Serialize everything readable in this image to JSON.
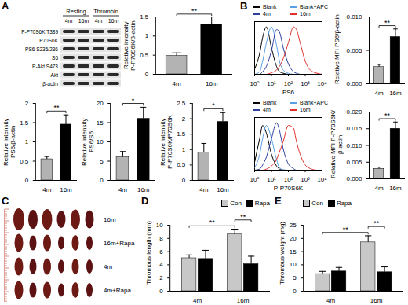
{
  "panel_labels": [
    "A",
    "B",
    "C",
    "D",
    "E"
  ],
  "blot": {
    "groups": [
      {
        "label": "Resting",
        "lanes": [
          "4m",
          "16m"
        ]
      },
      {
        "label": "Thrombin",
        "lanes": [
          "4m",
          "16m"
        ]
      }
    ],
    "rows": [
      "P-P70S6K T389",
      "P70S6K",
      "PS6 S235/236",
      "S6",
      "P-Akt S473",
      "Akt",
      "β-actin"
    ]
  },
  "photo": {
    "rows": [
      "16m",
      "16m+Rapa",
      "4m",
      "4m+Rapa"
    ]
  },
  "chart_data": [
    {
      "type": "bar",
      "ylabel": [
        "Relative intensity",
        "P-P70S6K/β-actin"
      ],
      "categories": [
        "4m",
        "16m"
      ],
      "values": [
        0.48,
        1.3
      ],
      "errors": [
        0.08,
        0.2
      ],
      "colors": [
        "#b3b3b3",
        "#000000"
      ],
      "ylim": [
        0,
        1.5
      ],
      "yticks": [
        0,
        0.5,
        1,
        1.5
      ],
      "significance": [
        {
          "label": "**",
          "from": "4m",
          "to": "16m"
        }
      ]
    },
    {
      "type": "bar",
      "ylabel": [
        "Relative intensity",
        "PS6/β-actin"
      ],
      "categories": [
        "4m",
        "16m"
      ],
      "values": [
        0.55,
        1.45
      ],
      "errors": [
        0.07,
        0.25
      ],
      "colors": [
        "#b3b3b3",
        "#000000"
      ],
      "ylim": [
        0,
        2
      ],
      "yticks": [
        0,
        0.5,
        1,
        1.5,
        2
      ],
      "significance": [
        {
          "label": "**",
          "from": "4m",
          "to": "16m"
        }
      ]
    },
    {
      "type": "bar",
      "ylabel": [
        "Relative intensity",
        "PS6/S6"
      ],
      "categories": [
        "4m",
        "16m"
      ],
      "values": [
        6,
        16
      ],
      "errors": [
        1.5,
        3
      ],
      "colors": [
        "#b3b3b3",
        "#000000"
      ],
      "ylim": [
        0,
        20
      ],
      "yticks": [
        0,
        5,
        10,
        15,
        20
      ],
      "significance": [
        {
          "label": "*",
          "from": "4m",
          "to": "16m"
        }
      ]
    },
    {
      "type": "bar",
      "ylabel": [
        "Relative intensity",
        "P-P70S6K/P70S6K"
      ],
      "categories": [
        "4m",
        "16m"
      ],
      "values": [
        0.9,
        1.9
      ],
      "errors": [
        0.3,
        0.3
      ],
      "colors": [
        "#b3b3b3",
        "#000000"
      ],
      "ylim": [
        0,
        2.5
      ],
      "yticks": [
        0,
        0.5,
        1,
        1.5,
        2,
        2.5
      ],
      "significance": [
        {
          "label": "*",
          "from": "4m",
          "to": "16m"
        }
      ]
    },
    {
      "type": "line",
      "xlabel": "PS6",
      "log": "x",
      "legend": "top",
      "tick_labels": "x",
      "x": [
        1,
        2,
        3,
        5,
        10,
        20,
        30,
        50,
        100,
        200,
        300,
        500,
        1000,
        2000,
        5000,
        10000
      ],
      "series": [
        {
          "name": "Blank",
          "color": "#000000",
          "values": [
            10,
            40,
            70,
            90,
            50,
            15,
            5,
            2,
            0,
            0,
            0,
            0,
            0,
            0,
            0,
            0
          ]
        },
        {
          "name": "Blank+APC",
          "color": "#5aa0e6",
          "values": [
            0,
            5,
            25,
            60,
            90,
            55,
            25,
            8,
            2,
            0,
            0,
            0,
            0,
            0,
            0,
            0
          ]
        },
        {
          "name": "4m",
          "color": "#2c3e9e",
          "values": [
            0,
            0,
            5,
            15,
            45,
            85,
            80,
            50,
            20,
            5,
            2,
            0,
            0,
            0,
            0,
            0
          ]
        },
        {
          "name": "16m",
          "color": "#e0302a",
          "values": [
            0,
            0,
            0,
            0,
            3,
            8,
            15,
            30,
            60,
            90,
            85,
            60,
            25,
            8,
            2,
            0
          ]
        }
      ],
      "xlim": [
        1,
        10000
      ],
      "xticks": [
        {
          "value": 1,
          "label": "10⁰"
        },
        {
          "value": 10,
          "label": "10¹"
        },
        {
          "value": 100,
          "label": "10²"
        },
        {
          "value": 1000,
          "label": "10³"
        },
        {
          "value": 10000,
          "label": "10⁴"
        }
      ],
      "ylim": [
        0,
        100
      ],
      "yticks": []
    },
    {
      "type": "bar",
      "ylabel": [
        "Relative MFI PS6/β-actin"
      ],
      "categories": [
        "4m",
        "16m"
      ],
      "values": [
        0.0025,
        0.007
      ],
      "errors": [
        0.0004,
        0.0012
      ],
      "colors": [
        "#b3b3b3",
        "#000000"
      ],
      "ylim": [
        0,
        0.01
      ],
      "yticks": [
        {
          "value": 0,
          "label": "0.000"
        },
        {
          "value": 0.005,
          "label": "0.005"
        },
        {
          "value": 0.01,
          "label": "0.010"
        }
      ],
      "significance": [
        {
          "label": "**",
          "from": "4m",
          "to": "16m"
        }
      ]
    },
    {
      "type": "line",
      "xlabel": "P-P70S6K",
      "log": "x",
      "legend": "top",
      "tick_labels": "x",
      "x": [
        1,
        2,
        3,
        5,
        10,
        20,
        30,
        50,
        100,
        200,
        300,
        500,
        1000,
        2000,
        5000,
        10000
      ],
      "series": [
        {
          "name": "Blank",
          "color": "#000000",
          "values": [
            15,
            60,
            85,
            70,
            30,
            8,
            2,
            0,
            0,
            0,
            0,
            0,
            0,
            0,
            0,
            0
          ]
        },
        {
          "name": "Blank+APC",
          "color": "#5aa0e6",
          "values": [
            5,
            30,
            60,
            85,
            60,
            20,
            5,
            1,
            0,
            0,
            0,
            0,
            0,
            0,
            0,
            0
          ]
        },
        {
          "name": "4m",
          "color": "#2c3e9e",
          "values": [
            0,
            2,
            10,
            25,
            60,
            90,
            75,
            40,
            12,
            3,
            0,
            0,
            0,
            0,
            0,
            0
          ]
        },
        {
          "name": "16m",
          "color": "#e0302a",
          "values": [
            0,
            0,
            0,
            2,
            8,
            20,
            35,
            55,
            85,
            80,
            55,
            30,
            10,
            3,
            0,
            0
          ]
        }
      ],
      "xlim": [
        1,
        10000
      ],
      "xticks": [
        {
          "value": 1,
          "label": "10⁰"
        },
        {
          "value": 10,
          "label": "10¹"
        },
        {
          "value": 100,
          "label": "10²"
        },
        {
          "value": 1000,
          "label": "10³"
        },
        {
          "value": 10000,
          "label": "10⁴"
        }
      ],
      "ylim": [
        0,
        100
      ],
      "yticks": []
    },
    {
      "type": "bar",
      "ylabel": [
        "Relative MFI P-P70S6K/",
        "β-actin"
      ],
      "categories": [
        "4m",
        "16m"
      ],
      "values": [
        0.003,
        0.015
      ],
      "errors": [
        0.0005,
        0.002
      ],
      "colors": [
        "#b3b3b3",
        "#000000"
      ],
      "ylim": [
        0,
        0.02
      ],
      "yticks": [
        {
          "value": 0,
          "label": "0.000"
        },
        {
          "value": 0.005,
          "label": "0.005"
        },
        {
          "value": 0.01,
          "label": "0.010"
        },
        {
          "value": 0.015,
          "label": "0.015"
        },
        {
          "value": 0.02,
          "label": "0.020"
        }
      ],
      "significance": [
        {
          "label": "**",
          "from": "4m",
          "to": "16m"
        }
      ]
    },
    {
      "type": "bar",
      "ylabel": [
        "Thrombus length (mm)"
      ],
      "categories": [
        "4m",
        "16m"
      ],
      "legend": "top-right",
      "series": [
        {
          "name": "Con",
          "color": "#c8c8c8",
          "values": [
            5.0,
            8.6
          ],
          "errors": [
            0.5,
            0.8
          ]
        },
        {
          "name": "Rapa",
          "color": "#000000",
          "values": [
            4.9,
            4.1
          ],
          "errors": [
            1.3,
            1.2
          ]
        }
      ],
      "ylim": [
        0,
        10
      ],
      "yticks": [
        0,
        2,
        4,
        6,
        8,
        10
      ],
      "significance": [
        {
          "label": "**",
          "from": [
            "4m",
            "Con"
          ],
          "to": [
            "16m",
            "Con"
          ]
        },
        {
          "label": "**",
          "from": [
            "16m",
            "Con"
          ],
          "to": [
            "16m",
            "Rapa"
          ]
        }
      ]
    },
    {
      "type": "bar",
      "ylabel": [
        "Thrombus weight (mg)"
      ],
      "categories": [
        "4m",
        "16m"
      ],
      "legend": "top-left",
      "series": [
        {
          "name": "Con",
          "color": "#c8c8c8",
          "values": [
            6.5,
            18.5
          ],
          "errors": [
            1,
            2.5
          ]
        },
        {
          "name": "Rapa",
          "color": "#000000",
          "values": [
            7.5,
            7.2
          ],
          "errors": [
            1.5,
            2
          ]
        }
      ],
      "ylim": [
        0,
        25
      ],
      "yticks": [
        0,
        5,
        10,
        15,
        20,
        25
      ],
      "significance": [
        {
          "label": "**",
          "from": [
            "4m",
            "Con"
          ],
          "to": [
            "16m",
            "Con"
          ]
        },
        {
          "label": "**",
          "from": [
            "16m",
            "Con"
          ],
          "to": [
            "16m",
            "Rapa"
          ]
        }
      ]
    }
  ]
}
